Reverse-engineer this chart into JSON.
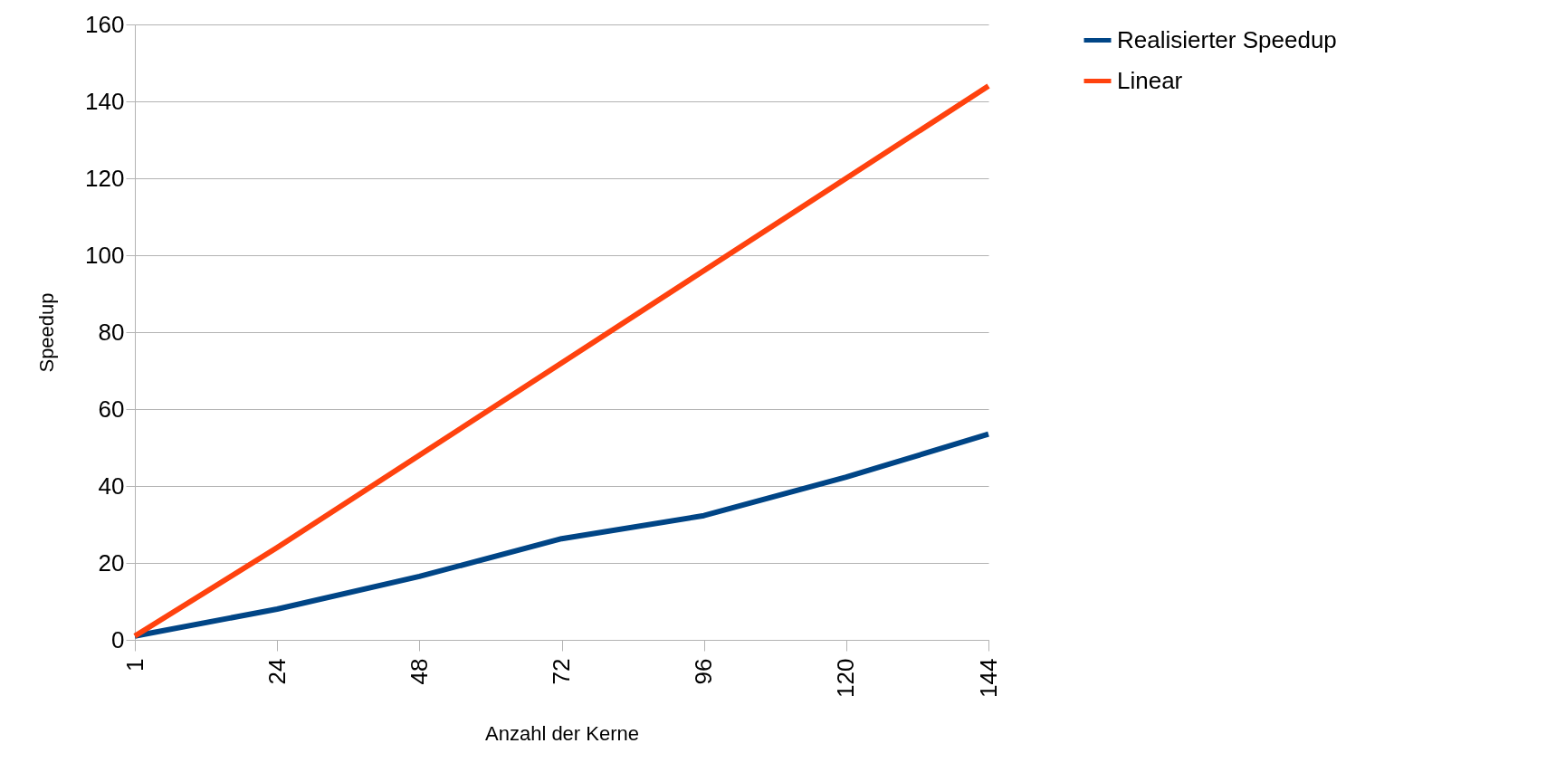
{
  "chart_data": {
    "type": "line",
    "xlabel": "Anzahl der Kerne",
    "ylabel": "Speedup",
    "categories": [
      "1",
      "24",
      "48",
      "72",
      "96",
      "120",
      "144"
    ],
    "series": [
      {
        "name": "Realisierter Speedup",
        "color": "#004586",
        "values": [
          1,
          8,
          16.5,
          26.3,
          32.3,
          42.3,
          53.5
        ]
      },
      {
        "name": "Linear",
        "color": "#ff420e",
        "values": [
          1,
          24,
          48,
          72,
          96,
          120,
          144
        ]
      }
    ],
    "ylim": [
      0,
      160
    ],
    "yticks": [
      0,
      20,
      40,
      60,
      80,
      100,
      120,
      140,
      160
    ],
    "grid": "y",
    "legend": "right",
    "marker": "none",
    "line_style": "solid"
  }
}
